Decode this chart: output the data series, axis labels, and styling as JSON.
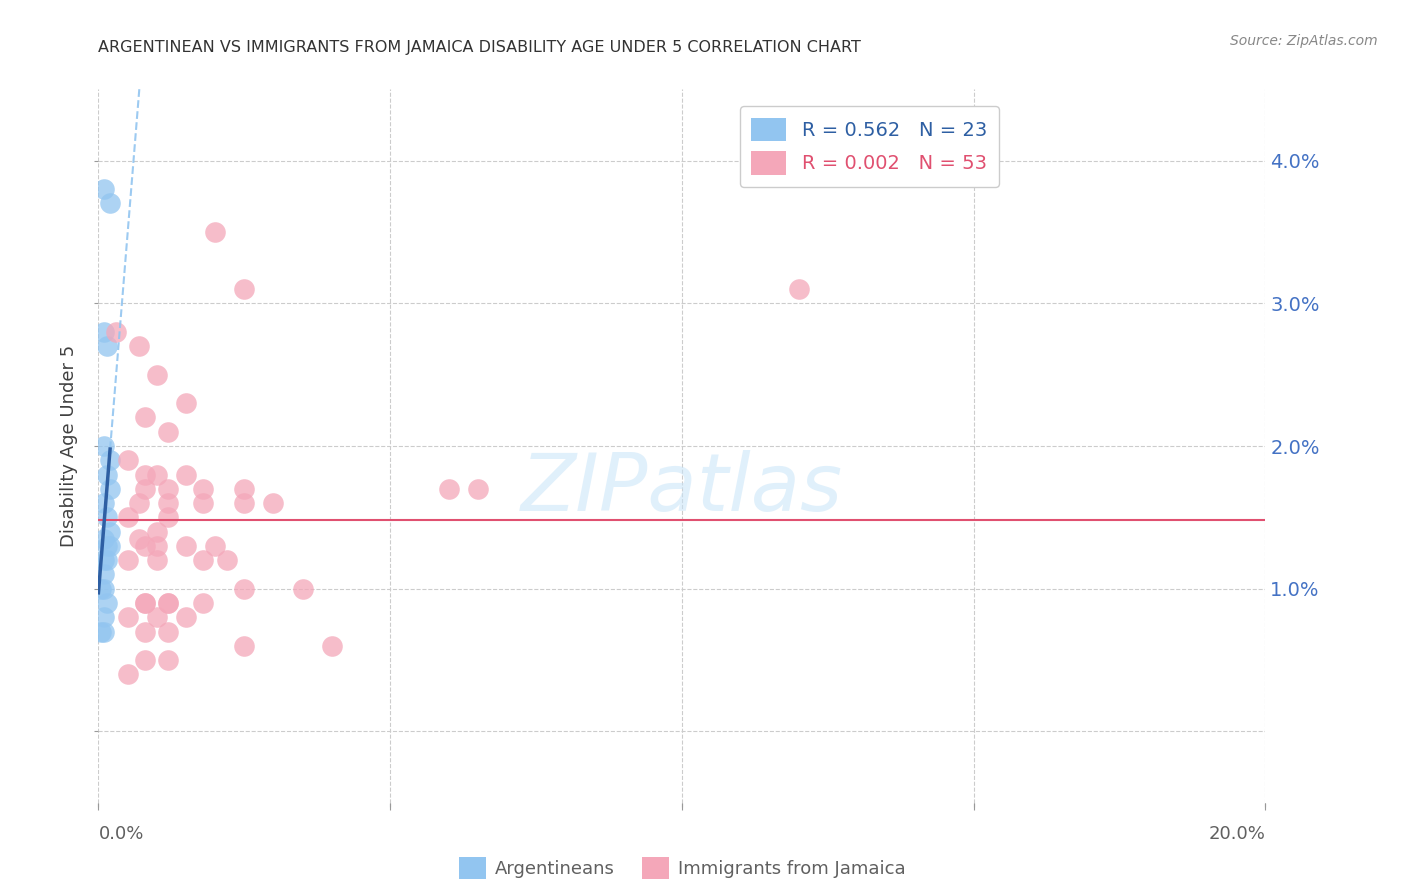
{
  "title": "ARGENTINEAN VS IMMIGRANTS FROM JAMAICA DISABILITY AGE UNDER 5 CORRELATION CHART",
  "source": "Source: ZipAtlas.com",
  "ylabel": "Disability Age Under 5",
  "xlabel_argentinean": "Argentineans",
  "xlabel_jamaica": "Immigrants from Jamaica",
  "watermark": "ZIPatlas",
  "xlim": [
    0.0,
    0.2
  ],
  "ylim": [
    -0.005,
    0.045
  ],
  "yticks": [
    0.0,
    0.01,
    0.02,
    0.03,
    0.04
  ],
  "ytick_labels": [
    "",
    "1.0%",
    "2.0%",
    "3.0%",
    "4.0%"
  ],
  "xtick_positions": [
    0.0,
    0.05,
    0.1,
    0.15,
    0.2
  ],
  "xtick_labels": [
    "0.0%",
    "",
    "",
    "",
    "20.0%"
  ],
  "legend_r1": "R = 0.562",
  "legend_n1": "N = 23",
  "legend_r2": "R = 0.002",
  "legend_n2": "N = 53",
  "color_argentinean": "#92C5F0",
  "color_jamaica": "#F4A7B9",
  "color_line1": "#2E5FA3",
  "color_line2": "#E05070",
  "color_grid": "#CCCCCC",
  "color_title": "#404040",
  "color_ytick": "#4472C4",
  "argentina_flat_line_y": 0.017,
  "jamaica_flat_line_y": 0.017,
  "arg_x": [
    0.001,
    0.002,
    0.001,
    0.0015,
    0.001,
    0.002,
    0.0015,
    0.002,
    0.001,
    0.0015,
    0.002,
    0.001,
    0.0015,
    0.002,
    0.001,
    0.0015,
    0.001,
    0.0005,
    0.001,
    0.0015,
    0.001,
    0.0005,
    0.001
  ],
  "arg_y": [
    0.038,
    0.037,
    0.028,
    0.027,
    0.02,
    0.019,
    0.018,
    0.017,
    0.016,
    0.015,
    0.014,
    0.0135,
    0.013,
    0.013,
    0.012,
    0.012,
    0.011,
    0.01,
    0.01,
    0.009,
    0.008,
    0.007,
    0.007
  ],
  "jam_x": [
    0.003,
    0.02,
    0.007,
    0.025,
    0.01,
    0.015,
    0.008,
    0.012,
    0.005,
    0.01,
    0.015,
    0.008,
    0.012,
    0.018,
    0.025,
    0.03,
    0.007,
    0.012,
    0.005,
    0.01,
    0.015,
    0.02,
    0.008,
    0.01,
    0.018,
    0.022,
    0.005,
    0.01,
    0.065,
    0.008,
    0.012,
    0.018,
    0.025,
    0.008,
    0.012,
    0.018,
    0.12,
    0.06,
    0.008,
    0.012,
    0.005,
    0.01,
    0.015,
    0.008,
    0.012,
    0.025,
    0.04,
    0.008,
    0.012,
    0.005,
    0.007,
    0.025,
    0.035
  ],
  "jam_y": [
    0.028,
    0.035,
    0.027,
    0.031,
    0.025,
    0.023,
    0.022,
    0.021,
    0.019,
    0.018,
    0.018,
    0.018,
    0.017,
    0.017,
    0.017,
    0.016,
    0.016,
    0.015,
    0.015,
    0.014,
    0.013,
    0.013,
    0.013,
    0.013,
    0.012,
    0.012,
    0.012,
    0.012,
    0.017,
    0.009,
    0.009,
    0.009,
    0.016,
    0.017,
    0.016,
    0.016,
    0.031,
    0.017,
    0.009,
    0.009,
    0.008,
    0.008,
    0.008,
    0.007,
    0.007,
    0.006,
    0.006,
    0.005,
    0.005,
    0.004,
    0.0135,
    0.01,
    0.01
  ]
}
